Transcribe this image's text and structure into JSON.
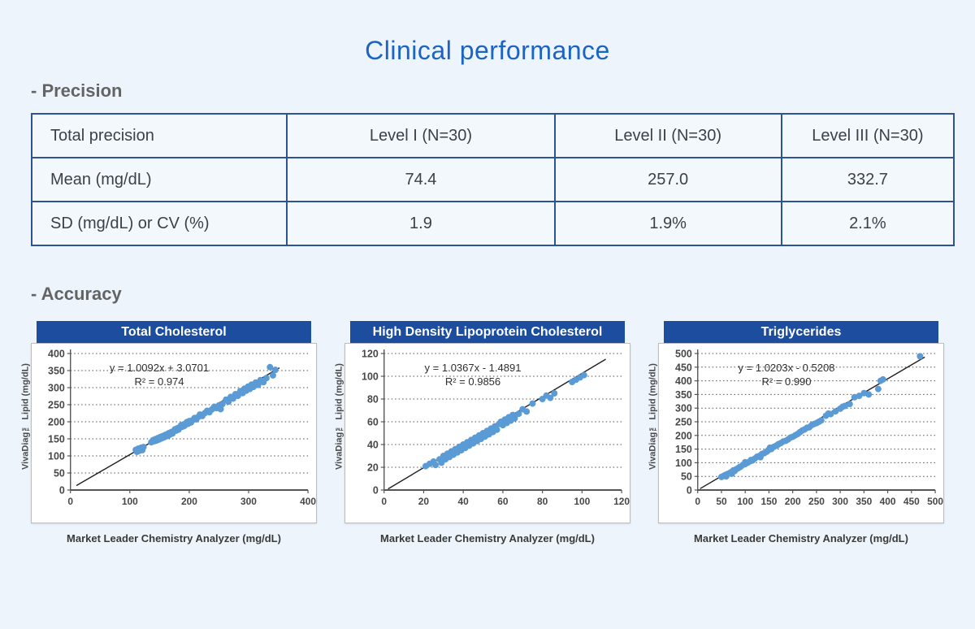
{
  "page": {
    "title": "Clinical performance",
    "background": "#edf4fb",
    "accent_blue": "#1b64c4",
    "header_bar_blue": "#1d4d9f",
    "table_border_blue": "#2e5395",
    "point_blue": "#5b9bd5"
  },
  "sections": {
    "precision_heading": "- Precision",
    "accuracy_heading": "- Accuracy"
  },
  "precision_table": {
    "rows": [
      [
        "Total precision",
        "Level I (N=30)",
        "Level II (N=30)",
        "Level III (N=30)"
      ],
      [
        "Mean (mg/dL)",
        "74.4",
        "257.0",
        "332.7"
      ],
      [
        "SD (mg/dL) or CV (%)",
        "1.9",
        "1.9%",
        "2.1%"
      ]
    ]
  },
  "chart_data": [
    {
      "type": "scatter",
      "title": "Total Cholesterol",
      "equation": "y = 1.0092x + 3.0701",
      "r2": "R² = 0.974",
      "xlabel": "Market Leader Chemistry Analyzer (mg/dL)",
      "ylabel": "VivaDiag™ Lipid (mg/dL)",
      "xlim": [
        0,
        400
      ],
      "ylim": [
        0,
        400
      ],
      "xstep": 100,
      "ystep": 50,
      "grid": true,
      "legend": "none",
      "trend": {
        "x1": 10,
        "y1": 13,
        "x2": 352,
        "y2": 358
      },
      "points": [
        [
          110,
          118
        ],
        [
          112,
          112
        ],
        [
          114,
          121
        ],
        [
          116,
          115
        ],
        [
          119,
          124
        ],
        [
          121,
          117
        ],
        [
          123,
          126
        ],
        [
          136,
          140
        ],
        [
          139,
          146
        ],
        [
          141,
          143
        ],
        [
          143,
          149
        ],
        [
          145,
          145
        ],
        [
          147,
          152
        ],
        [
          149,
          148
        ],
        [
          151,
          155
        ],
        [
          153,
          151
        ],
        [
          155,
          158
        ],
        [
          157,
          154
        ],
        [
          159,
          161
        ],
        [
          161,
          157
        ],
        [
          163,
          164
        ],
        [
          165,
          160
        ],
        [
          166,
          167
        ],
        [
          168,
          163
        ],
        [
          170,
          170
        ],
        [
          172,
          166
        ],
        [
          174,
          173
        ],
        [
          176,
          178
        ],
        [
          178,
          174
        ],
        [
          180,
          181
        ],
        [
          182,
          177
        ],
        [
          184,
          184
        ],
        [
          186,
          189
        ],
        [
          188,
          185
        ],
        [
          190,
          192
        ],
        [
          192,
          188
        ],
        [
          194,
          195
        ],
        [
          196,
          199
        ],
        [
          198,
          194
        ],
        [
          200,
          202
        ],
        [
          203,
          198
        ],
        [
          206,
          205
        ],
        [
          209,
          211
        ],
        [
          212,
          207
        ],
        [
          215,
          214
        ],
        [
          218,
          221
        ],
        [
          222,
          217
        ],
        [
          226,
          225
        ],
        [
          230,
          232
        ],
        [
          234,
          228
        ],
        [
          238,
          236
        ],
        [
          242,
          244
        ],
        [
          246,
          240
        ],
        [
          250,
          248
        ],
        [
          253,
          237
        ],
        [
          256,
          252
        ],
        [
          262,
          265
        ],
        [
          266,
          259
        ],
        [
          270,
          273
        ],
        [
          274,
          268
        ],
        [
          278,
          281
        ],
        [
          282,
          276
        ],
        [
          286,
          290
        ],
        [
          290,
          284
        ],
        [
          293,
          297
        ],
        [
          296,
          291
        ],
        [
          299,
          303
        ],
        [
          302,
          296
        ],
        [
          305,
          309
        ],
        [
          308,
          302
        ],
        [
          312,
          315
        ],
        [
          316,
          308
        ],
        [
          320,
          322
        ],
        [
          325,
          316
        ],
        [
          330,
          328
        ],
        [
          336,
          360
        ],
        [
          341,
          336
        ],
        [
          345,
          352
        ]
      ]
    },
    {
      "type": "scatter",
      "title": "High Density Lipoprotein Cholesterol",
      "equation": "y = 1.0367x - 1.4891",
      "r2": "R² = 0.9856",
      "xlabel": "Market Leader Chemistry Analyzer (mg/dL)",
      "ylabel": "VivaDiag™ Lipid (mg/dL)",
      "xlim": [
        0,
        120
      ],
      "ylim": [
        0,
        120
      ],
      "xstep": 20,
      "ystep": 20,
      "grid": true,
      "legend": "none",
      "trend": {
        "x1": 2,
        "y1": 1,
        "x2": 112,
        "y2": 115
      },
      "points": [
        [
          21,
          21
        ],
        [
          23,
          23
        ],
        [
          25,
          25
        ],
        [
          26,
          22
        ],
        [
          28,
          27
        ],
        [
          29,
          24
        ],
        [
          30,
          30
        ],
        [
          31,
          27
        ],
        [
          32,
          32
        ],
        [
          33,
          29
        ],
        [
          34,
          34
        ],
        [
          35,
          31
        ],
        [
          36,
          36
        ],
        [
          37,
          33
        ],
        [
          38,
          38
        ],
        [
          39,
          35
        ],
        [
          40,
          40
        ],
        [
          41,
          37
        ],
        [
          42,
          42
        ],
        [
          43,
          39
        ],
        [
          44,
          44
        ],
        [
          45,
          41
        ],
        [
          46,
          46
        ],
        [
          47,
          43
        ],
        [
          48,
          48
        ],
        [
          49,
          45
        ],
        [
          50,
          50
        ],
        [
          51,
          47
        ],
        [
          52,
          52
        ],
        [
          53,
          49
        ],
        [
          54,
          54
        ],
        [
          55,
          51
        ],
        [
          56,
          56
        ],
        [
          57,
          53
        ],
        [
          58,
          58
        ],
        [
          59,
          60
        ],
        [
          60,
          57
        ],
        [
          61,
          62
        ],
        [
          62,
          59
        ],
        [
          63,
          64
        ],
        [
          64,
          61
        ],
        [
          65,
          66
        ],
        [
          66,
          63
        ],
        [
          68,
          67
        ],
        [
          70,
          71
        ],
        [
          72,
          69
        ],
        [
          75,
          76
        ],
        [
          80,
          80
        ],
        [
          82,
          83
        ],
        [
          84,
          81
        ],
        [
          86,
          85
        ],
        [
          95,
          95
        ],
        [
          97,
          97
        ],
        [
          99,
          99
        ],
        [
          101,
          101
        ]
      ]
    },
    {
      "type": "scatter",
      "title": "Triglycerides",
      "equation": "y = 1.0203x - 0.5208",
      "r2": "R² = 0.990",
      "xlabel": "Market Leader Chemistry Analyzer (mg/dL)",
      "ylabel": "VivaDiag™ Lipid (mg/dL)",
      "xlim": [
        0,
        500
      ],
      "ylim": [
        0,
        500
      ],
      "xstep": 50,
      "ystep": 50,
      "grid": true,
      "legend": "none",
      "trend": {
        "x1": 5,
        "y1": 5,
        "x2": 478,
        "y2": 487
      },
      "points": [
        [
          50,
          48
        ],
        [
          55,
          52
        ],
        [
          58,
          55
        ],
        [
          60,
          50
        ],
        [
          62,
          58
        ],
        [
          65,
          60
        ],
        [
          68,
          63
        ],
        [
          70,
          65
        ],
        [
          72,
          60
        ],
        [
          75,
          72
        ],
        [
          78,
          70
        ],
        [
          80,
          75
        ],
        [
          85,
          80
        ],
        [
          88,
          84
        ],
        [
          90,
          85
        ],
        [
          95,
          92
        ],
        [
          100,
          95
        ],
        [
          100,
          102
        ],
        [
          105,
          100
        ],
        [
          110,
          105
        ],
        [
          112,
          110
        ],
        [
          115,
          108
        ],
        [
          120,
          115
        ],
        [
          125,
          122
        ],
        [
          130,
          125
        ],
        [
          132,
          120
        ],
        [
          135,
          132
        ],
        [
          140,
          135
        ],
        [
          145,
          140
        ],
        [
          148,
          145
        ],
        [
          150,
          148
        ],
        [
          152,
          155
        ],
        [
          155,
          150
        ],
        [
          160,
          158
        ],
        [
          165,
          162
        ],
        [
          168,
          165
        ],
        [
          170,
          168
        ],
        [
          175,
          172
        ],
        [
          180,
          178
        ],
        [
          185,
          180
        ],
        [
          190,
          185
        ],
        [
          195,
          192
        ],
        [
          200,
          195
        ],
        [
          205,
          200
        ],
        [
          210,
          205
        ],
        [
          215,
          212
        ],
        [
          220,
          218
        ],
        [
          225,
          222
        ],
        [
          230,
          228
        ],
        [
          235,
          230
        ],
        [
          240,
          238
        ],
        [
          245,
          242
        ],
        [
          250,
          245
        ],
        [
          255,
          250
        ],
        [
          260,
          255
        ],
        [
          270,
          272
        ],
        [
          275,
          280
        ],
        [
          280,
          278
        ],
        [
          290,
          288
        ],
        [
          300,
          298
        ],
        [
          305,
          305
        ],
        [
          310,
          308
        ],
        [
          320,
          315
        ],
        [
          330,
          340
        ],
        [
          340,
          345
        ],
        [
          350,
          355
        ],
        [
          360,
          350
        ],
        [
          380,
          370
        ],
        [
          385,
          400
        ],
        [
          390,
          405
        ],
        [
          468,
          490
        ]
      ]
    }
  ]
}
